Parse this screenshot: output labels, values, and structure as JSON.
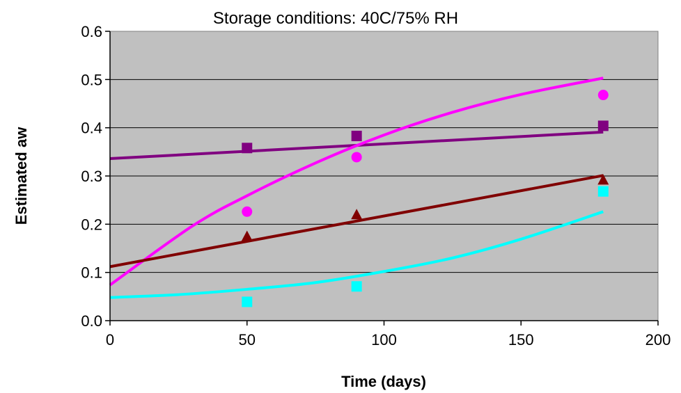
{
  "chart_data": {
    "type": "scatter",
    "title": "Storage conditions:  40C/75% RH",
    "xlabel": "Time (days)",
    "ylabel": "Estimated aw",
    "xlim": [
      0,
      200
    ],
    "ylim": [
      0.0,
      0.6
    ],
    "xticks": [
      0,
      50,
      100,
      150,
      200
    ],
    "xtick_labels": [
      "0",
      "50",
      "100",
      "150",
      "200"
    ],
    "yticks": [
      0.0,
      0.1,
      0.2,
      0.3,
      0.4,
      0.5,
      0.6
    ],
    "ytick_labels": [
      "0.0",
      "0.1",
      "0.2",
      "0.3",
      "0.4",
      "0.5",
      "0.6"
    ],
    "grid": "horizontal",
    "plot_background": "#c0c0c0",
    "legend": "none",
    "series": [
      {
        "marker": "square",
        "color": "#800080",
        "points": [
          [
            50,
            0.358
          ],
          [
            90,
            0.383
          ],
          [
            180,
            0.404
          ]
        ],
        "trendline": {
          "kind": "line",
          "points": [
            [
              0,
              0.336
            ],
            [
              180,
              0.391
            ]
          ]
        }
      },
      {
        "marker": "circle",
        "color": "#ff00ff",
        "points": [
          [
            50,
            0.226
          ],
          [
            90,
            0.339
          ],
          [
            180,
            0.468
          ]
        ],
        "trendline": {
          "kind": "curve",
          "points": [
            [
              0,
              0.074
            ],
            [
              30,
              0.196
            ],
            [
              50,
              0.259
            ],
            [
              75,
              0.327
            ],
            [
              100,
              0.385
            ],
            [
              125,
              0.432
            ],
            [
              150,
              0.469
            ],
            [
              180,
              0.503
            ]
          ]
        }
      },
      {
        "marker": "triangle",
        "color": "#800000",
        "points": [
          [
            50,
            0.176
          ],
          [
            90,
            0.221
          ],
          [
            180,
            0.293
          ]
        ],
        "trendline": {
          "kind": "line",
          "points": [
            [
              0,
              0.112
            ],
            [
              180,
              0.301
            ]
          ]
        }
      },
      {
        "marker": "square",
        "color": "#00ffff",
        "points": [
          [
            50,
            0.039
          ],
          [
            90,
            0.071
          ],
          [
            180,
            0.268
          ]
        ],
        "trendline": {
          "kind": "curve",
          "points": [
            [
              0,
              0.048
            ],
            [
              25,
              0.054
            ],
            [
              50,
              0.065
            ],
            [
              75,
              0.079
            ],
            [
              100,
              0.102
            ],
            [
              125,
              0.13
            ],
            [
              150,
              0.169
            ],
            [
              180,
              0.226
            ]
          ]
        }
      }
    ]
  }
}
